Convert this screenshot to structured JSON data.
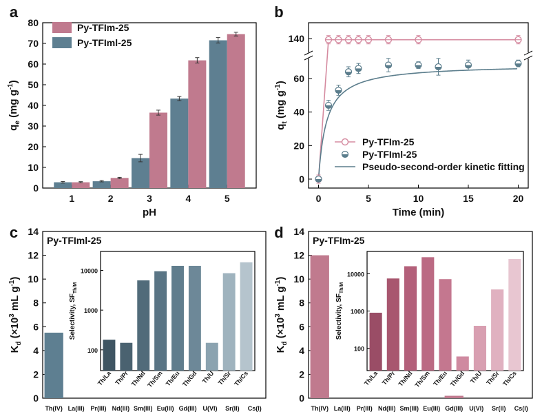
{
  "colors": {
    "pink": "#c07a8e",
    "slate": "#5e7f91",
    "pink_line": "#d58ba0",
    "slate_line": "#5b7d8c"
  },
  "chart_data": [
    {
      "panel": "a",
      "type": "bar",
      "ylabel": "qe (mg g-1)",
      "ylabel_parts": {
        "main": "q",
        "sub": "e",
        "unit": " (mg g",
        "sup": "-1",
        "close": ")"
      },
      "xlabel": "pH",
      "categories": [
        "1",
        "2",
        "3",
        "4",
        "5"
      ],
      "ylim": [
        0,
        80
      ],
      "yticks": [
        0,
        10,
        20,
        30,
        40,
        50,
        60,
        70,
        80
      ],
      "legend": [
        "Py-TFIm-25",
        "Py-TFIml-25"
      ],
      "series": [
        {
          "name": "Py-TFIml-25",
          "color": "#5e7f91",
          "values": [
            2.8,
            3.3,
            14.5,
            43.3,
            71.5
          ],
          "errors": [
            0.4,
            0.3,
            1.8,
            1.0,
            1.3
          ]
        },
        {
          "name": "Py-TFIm-25",
          "color": "#c07a8e",
          "values": [
            2.8,
            4.9,
            36.5,
            61.8,
            74.5
          ],
          "errors": [
            0.3,
            0.3,
            1.2,
            1.3,
            0.9
          ]
        }
      ]
    },
    {
      "panel": "b",
      "type": "line",
      "ylabel": "qt (mg g-1)",
      "ylabel_parts": {
        "main": "q",
        "sub": "t",
        "unit": " (mg g",
        "sup": "-1",
        "close": ")"
      },
      "xlabel": "Time (min)",
      "xlim": [
        -1,
        21
      ],
      "xticks": [
        0,
        5,
        10,
        15,
        20
      ],
      "yticks_lower": [
        0,
        20,
        40,
        60
      ],
      "yticks_upper": [
        140
      ],
      "legend": [
        "Py-TFIm-25",
        "Py-TFIml-25",
        "Pseudo-second-order kinetic fitting"
      ],
      "series": [
        {
          "name": "Py-TFIm-25",
          "x": [
            0,
            1,
            2,
            3,
            4,
            5,
            7,
            10,
            20
          ],
          "y": [
            0,
            139,
            139,
            139,
            139,
            139,
            139,
            139,
            139
          ],
          "errors": [
            0.6,
            1.5,
            1.5,
            1.5,
            1.5,
            1.5,
            1.5,
            1.5,
            1.5
          ]
        },
        {
          "name": "Py-TFIml-25",
          "x": [
            0,
            1,
            2,
            3,
            4,
            7,
            10,
            12,
            15,
            20
          ],
          "y": [
            0,
            44,
            53,
            64,
            66,
            68,
            68,
            67,
            68,
            69
          ],
          "errors": [
            0,
            3,
            3,
            3,
            3,
            4,
            2,
            5,
            3,
            2
          ]
        }
      ]
    },
    {
      "panel": "c",
      "type": "bar",
      "title": "Py-TFIml-25",
      "ylabel": "Kd (×10^3 mL g-1)",
      "ylabel_parts": {
        "main": "K",
        "sub": "d",
        "unit": " (×10",
        "sup3": "3",
        "unit2": " mL g",
        "sup": "-1",
        "close": ")"
      },
      "categories": [
        "Th(IV)",
        "La(III)",
        "Pr(III)",
        "Nd(III)",
        "Sm(III)",
        "Eu(III)",
        "Gd(III)",
        "U(VI)",
        "Sr(II)",
        "Cs(I)"
      ],
      "values": [
        5.5,
        0,
        0,
        0,
        0,
        0,
        0,
        0,
        0,
        0
      ],
      "ylim": [
        0,
        14
      ],
      "yticks": [
        0,
        2,
        4,
        6,
        8,
        10,
        12,
        14
      ],
      "inset": {
        "ylabel": "Selectivity, SF",
        "ylabel_sub": "Th/M",
        "scale": "log",
        "yticks": [
          "100",
          "1000",
          "10000"
        ],
        "categories": [
          "Th/La",
          "Th/Pr",
          "Th/Nd",
          "Th/Sm",
          "Th/Eu",
          "Th/Gd",
          "Th/U",
          "Th/Sr",
          "Th/Cs"
        ],
        "values": [
          180,
          150,
          5600,
          9500,
          13000,
          13000,
          150,
          8500,
          16000
        ],
        "colors": [
          "#3f5562",
          "#4a6270",
          "#516b7a",
          "#5a7585",
          "#607d8d",
          "#6d8898",
          "#8ba3b0",
          "#9fb3be",
          "#b5c4cd"
        ]
      }
    },
    {
      "panel": "d",
      "type": "bar",
      "title": "Py-TFIm-25",
      "ylabel": "Kd (×10^3 mL g-1)",
      "ylabel_parts": {
        "main": "K",
        "sub": "d",
        "unit": " (×10",
        "sup3": "3",
        "unit2": " mL g",
        "sup": "-1",
        "close": ")"
      },
      "categories": [
        "Th(IV)",
        "La(III)",
        "Pr(III)",
        "Nd(III)",
        "Sm(III)",
        "Eu(III)",
        "Gd(III)",
        "U(VI)",
        "Sr(II)",
        "Cs(I)"
      ],
      "values": [
        12.0,
        0,
        0,
        0,
        0,
        0,
        0.2,
        0,
        0,
        0
      ],
      "ylim": [
        0,
        14
      ],
      "yticks": [
        0,
        2,
        4,
        6,
        8,
        10,
        12,
        14
      ],
      "inset": {
        "ylabel": "Selectivity, SF",
        "ylabel_sub": "Th/M",
        "scale": "log",
        "yticks": [
          "100",
          "1000",
          "10000"
        ],
        "categories": [
          "Th/La",
          "Th/Pr",
          "Th/Nd",
          "Th/Sm",
          "Th/Eu",
          "Th/Gd",
          "Th/U",
          "Th/Sr",
          "Th/Cs"
        ],
        "values": [
          900,
          7500,
          16000,
          28000,
          7200,
          60,
          400,
          3800,
          25000
        ],
        "colors": [
          "#9a4d66",
          "#a8566f",
          "#b3607a",
          "#bb6a83",
          "#c4778f",
          "#cf8aa0",
          "#d89fb1",
          "#e0b1c0",
          "#e8c6d1"
        ]
      }
    }
  ]
}
